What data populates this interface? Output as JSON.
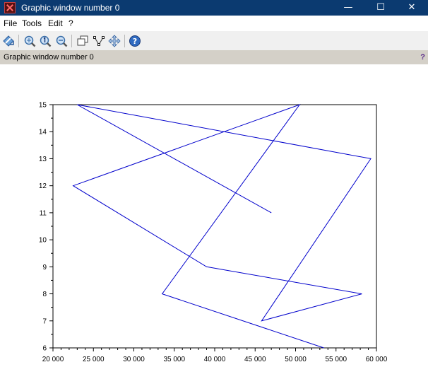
{
  "window": {
    "title": "Graphic window number 0",
    "controls": {
      "minimize": "—",
      "maximize": "☐",
      "close": "✕"
    }
  },
  "menu": {
    "items": [
      "File",
      "Tools",
      "Edit",
      "?"
    ]
  },
  "toolbar": {
    "buttons": [
      "rotate-icon",
      "zoom-icon",
      "zoom-original-icon",
      "zoom-out-icon",
      "datatip-icon",
      "edit-curve-icon",
      "pan-icon",
      "help-icon"
    ]
  },
  "infobar": {
    "text": "Graphic window number 0",
    "help": "?"
  },
  "colors": {
    "titlebar": "#0b3a70",
    "infobar": "#d4d0c8",
    "curve": "#0000cc"
  },
  "chart_data": {
    "type": "line",
    "title": "",
    "xlabel": "",
    "ylabel": "",
    "xlim": [
      20000,
      60000
    ],
    "ylim": [
      6,
      15
    ],
    "grid": false,
    "x_ticks": [
      20000,
      25000,
      30000,
      35000,
      40000,
      45000,
      50000,
      55000,
      60000
    ],
    "x_tick_labels": [
      "20 000",
      "25 000",
      "30 000",
      "35 000",
      "40 000",
      "45 000",
      "50 000",
      "55 000",
      "60 000"
    ],
    "y_ticks": [
      6,
      7,
      8,
      9,
      10,
      11,
      12,
      13,
      14,
      15
    ],
    "y_tick_labels": [
      "6",
      "7",
      "8",
      "9",
      "10",
      "11",
      "12",
      "13",
      "14",
      "15"
    ],
    "series": [
      {
        "color": "#0000cc",
        "points": [
          [
            47000,
            11
          ],
          [
            23000,
            15
          ],
          [
            59300,
            13
          ],
          [
            45800,
            7
          ],
          [
            58200,
            8
          ],
          [
            39000,
            9
          ],
          [
            22500,
            12
          ],
          [
            50500,
            15
          ],
          [
            33500,
            8
          ],
          [
            53500,
            6
          ]
        ]
      }
    ]
  }
}
